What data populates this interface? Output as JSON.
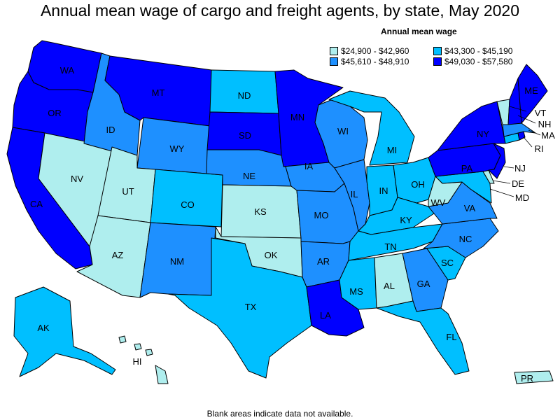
{
  "title": "Annual mean wage of cargo and freight agents, by state, May 2020",
  "legend": {
    "title": "Annual mean wage",
    "items": [
      {
        "label": "$24,900 - $42,960",
        "color": "#afeeee"
      },
      {
        "label": "$43,300 - $45,190",
        "color": "#00bfff"
      },
      {
        "label": "$45,610 - $48,910",
        "color": "#1e90ff"
      },
      {
        "label": "$49,030 - $57,580",
        "color": "#0000ff"
      }
    ]
  },
  "footnote": "Blank areas indicate data not available.",
  "states": {
    "WA": {
      "label": "WA",
      "tier": 3
    },
    "OR": {
      "label": "OR",
      "tier": 3
    },
    "CA": {
      "label": "CA",
      "tier": 3
    },
    "NV": {
      "label": "NV",
      "tier": 0
    },
    "ID": {
      "label": "ID",
      "tier": 2
    },
    "MT": {
      "label": "MT",
      "tier": 3
    },
    "WY": {
      "label": "WY",
      "tier": 2
    },
    "UT": {
      "label": "UT",
      "tier": 0
    },
    "AZ": {
      "label": "AZ",
      "tier": 0
    },
    "CO": {
      "label": "CO",
      "tier": 1
    },
    "NM": {
      "label": "NM",
      "tier": 2
    },
    "ND": {
      "label": "ND",
      "tier": 1
    },
    "SD": {
      "label": "SD",
      "tier": 3
    },
    "NE": {
      "label": "NE",
      "tier": 2
    },
    "KS": {
      "label": "KS",
      "tier": 0
    },
    "OK": {
      "label": "OK",
      "tier": 0
    },
    "TX": {
      "label": "TX",
      "tier": 1
    },
    "MN": {
      "label": "MN",
      "tier": 3
    },
    "IA": {
      "label": "IA",
      "tier": 2
    },
    "MO": {
      "label": "MO",
      "tier": 2
    },
    "AR": {
      "label": "AR",
      "tier": 2
    },
    "LA": {
      "label": "LA",
      "tier": 3
    },
    "WI": {
      "label": "WI",
      "tier": 2
    },
    "IL": {
      "label": "IL",
      "tier": 2
    },
    "MI": {
      "label": "MI",
      "tier": 1
    },
    "IN": {
      "label": "IN",
      "tier": 1
    },
    "OH": {
      "label": "OH",
      "tier": 1
    },
    "KY": {
      "label": "KY",
      "tier": 1
    },
    "TN": {
      "label": "TN",
      "tier": 1
    },
    "MS": {
      "label": "MS",
      "tier": 1
    },
    "AL": {
      "label": "AL",
      "tier": 0
    },
    "GA": {
      "label": "GA",
      "tier": 2
    },
    "FL": {
      "label": "FL",
      "tier": 1
    },
    "SC": {
      "label": "SC",
      "tier": 1
    },
    "NC": {
      "label": "NC",
      "tier": 2
    },
    "VA": {
      "label": "VA",
      "tier": 2
    },
    "WV": {
      "label": "WV",
      "tier": 0
    },
    "PA": {
      "label": "PA",
      "tier": 3
    },
    "NY": {
      "label": "NY",
      "tier": 3
    },
    "VT": {
      "label": "VT",
      "tier": 0
    },
    "NH": {
      "label": "NH",
      "tier": 3
    },
    "ME": {
      "label": "ME",
      "tier": 3
    },
    "MA": {
      "label": "MA",
      "tier": 2
    },
    "RI": {
      "label": "RI",
      "tier": 3
    },
    "CT": {
      "label": "",
      "tier": 1
    },
    "NJ": {
      "label": "NJ",
      "tier": 3
    },
    "DE": {
      "label": "DE",
      "tier": 0
    },
    "MD": {
      "label": "MD",
      "tier": 1
    },
    "AK": {
      "label": "AK",
      "tier": 1
    },
    "HI": {
      "label": "HI",
      "tier": 0
    },
    "PR": {
      "label": "PR",
      "tier": 0
    }
  }
}
